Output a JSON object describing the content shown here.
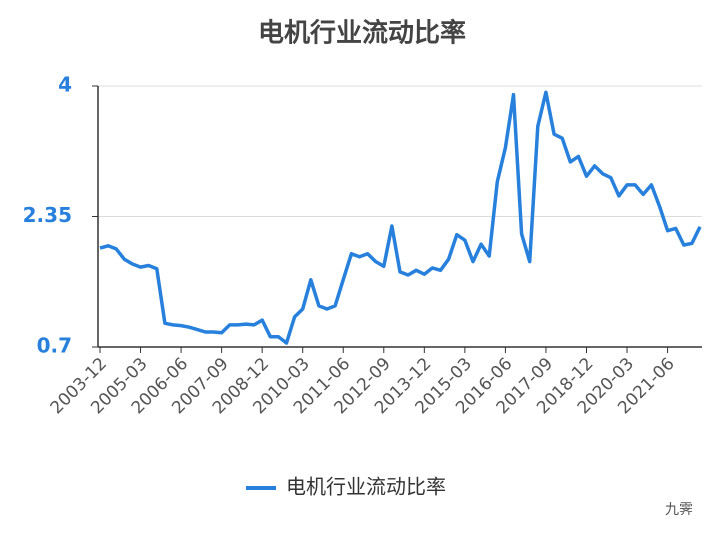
{
  "chart_data": {
    "type": "line",
    "title": "电机行业流动比率",
    "categories": [
      "2003-12",
      null,
      null,
      null,
      null,
      "2005-03",
      null,
      null,
      null,
      null,
      "2006-06",
      null,
      null,
      null,
      null,
      "2007-09",
      null,
      null,
      null,
      null,
      "2008-12",
      null,
      null,
      null,
      null,
      "2010-03",
      null,
      null,
      null,
      null,
      "2011-06",
      null,
      null,
      null,
      null,
      "2012-09",
      null,
      null,
      null,
      null,
      "2013-12",
      null,
      null,
      null,
      null,
      "2015-03",
      null,
      null,
      null,
      null,
      "2016-06",
      null,
      null,
      null,
      null,
      "2017-09",
      null,
      null,
      null,
      null,
      "2018-12",
      null,
      null,
      null,
      null,
      "2020-03",
      null,
      null,
      null,
      null,
      "2021-06",
      null,
      null,
      null,
      null
    ],
    "series": [
      {
        "name": "电机行业流动比率",
        "color": "#2680dc",
        "values": [
          1.95,
          1.98,
          1.94,
          1.81,
          1.75,
          1.71,
          1.73,
          1.69,
          1.0,
          0.98,
          0.97,
          0.95,
          0.92,
          0.89,
          0.89,
          0.88,
          0.98,
          0.98,
          0.99,
          0.98,
          1.04,
          0.83,
          0.83,
          0.75,
          1.08,
          1.18,
          1.55,
          1.22,
          1.18,
          1.22,
          1.55,
          1.88,
          1.84,
          1.88,
          1.78,
          1.72,
          2.23,
          1.65,
          1.61,
          1.67,
          1.62,
          1.7,
          1.67,
          1.81,
          2.12,
          2.05,
          1.78,
          2.0,
          1.85,
          2.79,
          3.22,
          3.89,
          2.13,
          1.78,
          3.49,
          3.92,
          3.39,
          3.34,
          3.04,
          3.11,
          2.86,
          2.99,
          2.89,
          2.84,
          2.61,
          2.75,
          2.75,
          2.63,
          2.75,
          2.48,
          2.17,
          2.2,
          1.99,
          2.01,
          2.22
        ]
      }
    ],
    "ylim": [
      0.7,
      4
    ],
    "yticks": [
      0.7,
      2.35,
      4
    ],
    "grid": true,
    "legend": "bottom"
  },
  "watermark": "九霁"
}
